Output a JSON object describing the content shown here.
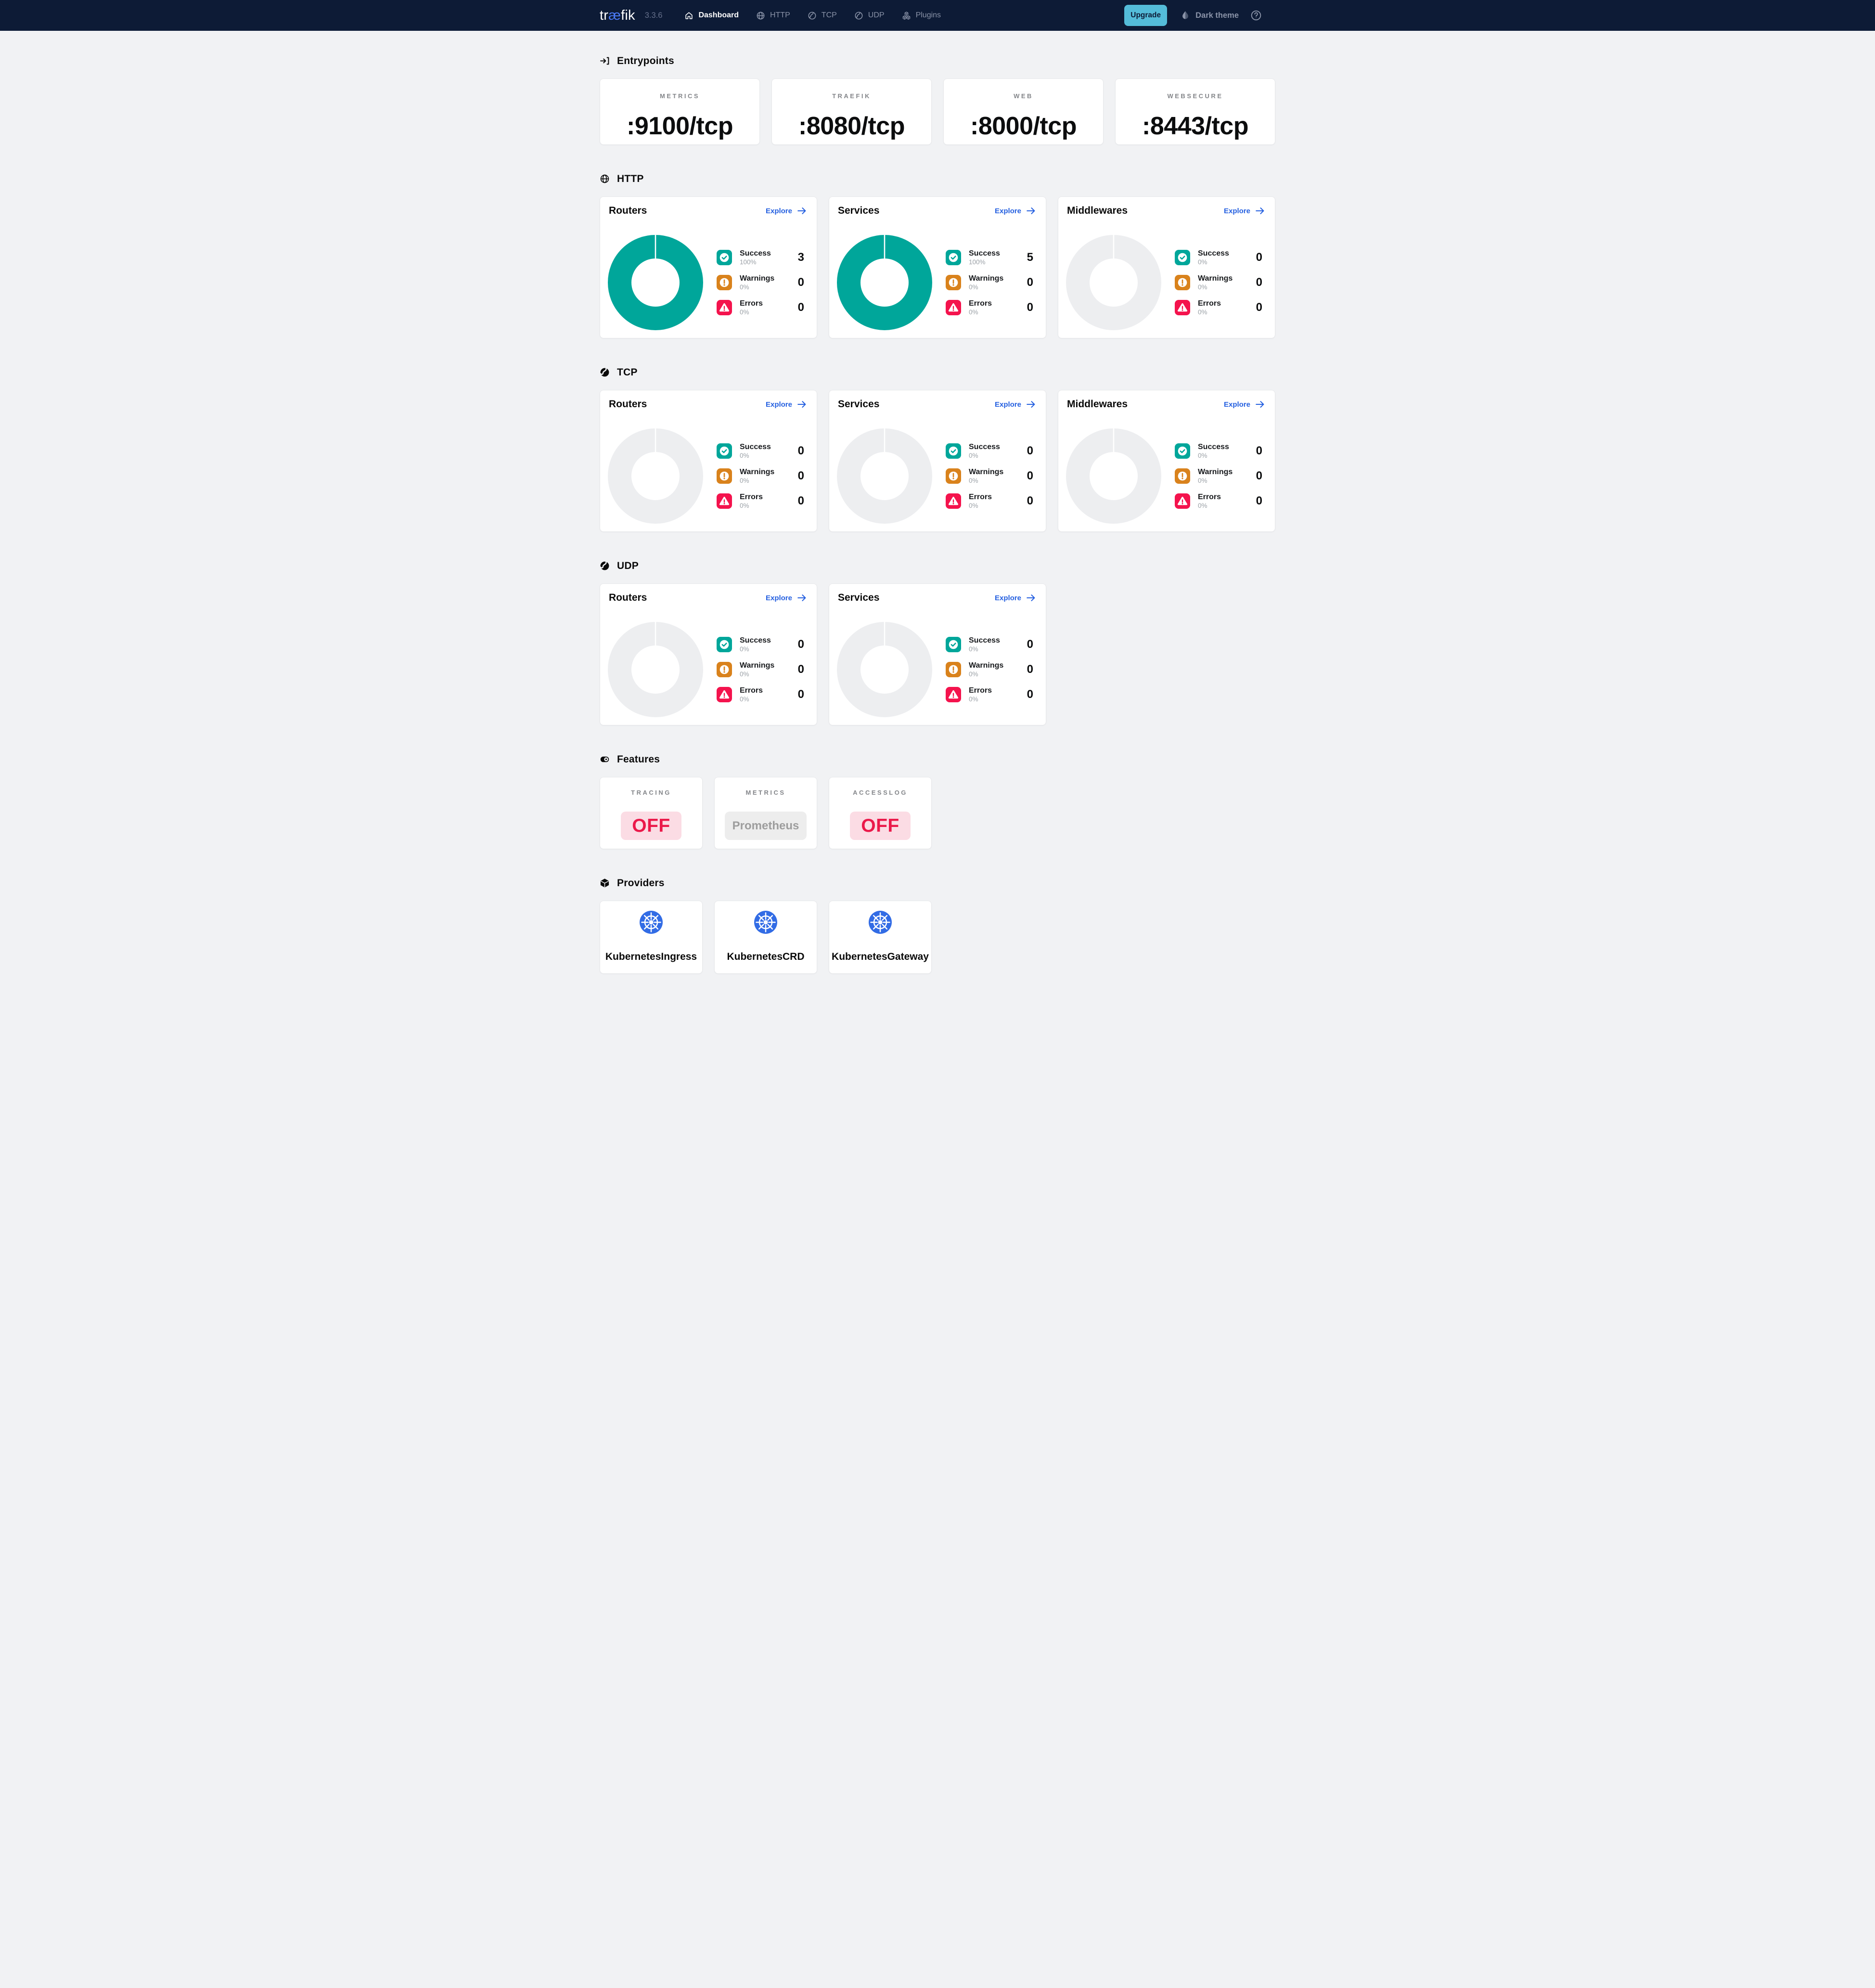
{
  "app": {
    "title_prefix": "tr",
    "title_ligature": "æ",
    "title_suffix": "fik",
    "version": "3.3.6"
  },
  "header": {
    "nav": [
      {
        "label": "Dashboard",
        "icon": "home-icon",
        "active": true
      },
      {
        "label": "HTTP",
        "icon": "globe-icon",
        "active": false
      },
      {
        "label": "TCP",
        "icon": "proxy-icon",
        "active": false
      },
      {
        "label": "UDP",
        "icon": "proxy-icon",
        "active": false
      },
      {
        "label": "Plugins",
        "icon": "plugins-icon",
        "active": false
      }
    ],
    "upgrade_label": "Upgrade",
    "theme_toggle_label": "Dark theme"
  },
  "colors": {
    "success": "#00a69a",
    "warning": "#d9821c",
    "error": "#f4134d",
    "donut_empty": "#edeef0",
    "link_blue": "#2560e0",
    "logo_blue": "#4b7bf8",
    "header_bg": "#0d1b36",
    "upgrade_bg": "#54bcd9",
    "kubernetes_blue": "#326ce5",
    "off_pill_bg": "#fbdce4",
    "off_pill_text": "#eb194a",
    "neutral_pill_bg": "#eeeeee",
    "neutral_pill_text": "#9c9c9c"
  },
  "sections": [
    {
      "id": "entrypoints",
      "title": "Entrypoints",
      "icon": "login-icon",
      "type": "stats",
      "cards": [
        {
          "label": "METRICS",
          "value": ":9100/tcp"
        },
        {
          "label": "TRAEFIK",
          "value": ":8080/tcp"
        },
        {
          "label": "WEB",
          "value": ":8000/tcp"
        },
        {
          "label": "WEBSECURE",
          "value": ":8443/tcp"
        }
      ]
    },
    {
      "id": "http",
      "title": "HTTP",
      "icon": "globe-icon",
      "type": "charts",
      "cards": [
        {
          "title": "Routers",
          "explore_label": "Explore",
          "chart": 0
        },
        {
          "title": "Services",
          "explore_label": "Explore",
          "chart": 1
        },
        {
          "title": "Middlewares",
          "explore_label": "Explore",
          "chart": 2
        }
      ]
    },
    {
      "id": "tcp",
      "title": "TCP",
      "icon": "proxy-icon-filled",
      "type": "charts",
      "cards": [
        {
          "title": "Routers",
          "explore_label": "Explore",
          "chart": 3
        },
        {
          "title": "Services",
          "explore_label": "Explore",
          "chart": 4
        },
        {
          "title": "Middlewares",
          "explore_label": "Explore",
          "chart": 5
        }
      ]
    },
    {
      "id": "udp",
      "title": "UDP",
      "icon": "proxy-icon-filled",
      "type": "charts",
      "cards": [
        {
          "title": "Routers",
          "explore_label": "Explore",
          "chart": 6
        },
        {
          "title": "Services",
          "explore_label": "Explore",
          "chart": 7
        }
      ]
    },
    {
      "id": "features",
      "title": "Features",
      "icon": "toggle-icon",
      "type": "features",
      "cards": [
        {
          "label": "TRACING",
          "pill": "OFF",
          "state": "off"
        },
        {
          "label": "METRICS",
          "pill": "Prometheus",
          "state": "neutral"
        },
        {
          "label": "ACCESSLOG",
          "pill": "OFF",
          "state": "off"
        }
      ]
    },
    {
      "id": "providers",
      "title": "Providers",
      "icon": "cube-icon",
      "type": "providers",
      "cards": [
        {
          "name": "KubernetesIngress",
          "icon": "kubernetes-icon"
        },
        {
          "name": "KubernetesCRD",
          "icon": "kubernetes-icon"
        },
        {
          "name": "KubernetesGateway",
          "icon": "kubernetes-icon"
        }
      ]
    }
  ],
  "chart_data": [
    {
      "type": "donut",
      "section": "HTTP",
      "card": "Routers",
      "series": [
        {
          "name": "Success",
          "percent": 100,
          "value": 3
        },
        {
          "name": "Warnings",
          "percent": 0,
          "value": 0
        },
        {
          "name": "Errors",
          "percent": 0,
          "value": 0
        }
      ]
    },
    {
      "type": "donut",
      "section": "HTTP",
      "card": "Services",
      "series": [
        {
          "name": "Success",
          "percent": 100,
          "value": 5
        },
        {
          "name": "Warnings",
          "percent": 0,
          "value": 0
        },
        {
          "name": "Errors",
          "percent": 0,
          "value": 0
        }
      ]
    },
    {
      "type": "donut",
      "section": "HTTP",
      "card": "Middlewares",
      "series": [
        {
          "name": "Success",
          "percent": 0,
          "value": 0
        },
        {
          "name": "Warnings",
          "percent": 0,
          "value": 0
        },
        {
          "name": "Errors",
          "percent": 0,
          "value": 0
        }
      ]
    },
    {
      "type": "donut",
      "section": "TCP",
      "card": "Routers",
      "series": [
        {
          "name": "Success",
          "percent": 0,
          "value": 0
        },
        {
          "name": "Warnings",
          "percent": 0,
          "value": 0
        },
        {
          "name": "Errors",
          "percent": 0,
          "value": 0
        }
      ]
    },
    {
      "type": "donut",
      "section": "TCP",
      "card": "Services",
      "series": [
        {
          "name": "Success",
          "percent": 0,
          "value": 0
        },
        {
          "name": "Warnings",
          "percent": 0,
          "value": 0
        },
        {
          "name": "Errors",
          "percent": 0,
          "value": 0
        }
      ]
    },
    {
      "type": "donut",
      "section": "TCP",
      "card": "Middlewares",
      "series": [
        {
          "name": "Success",
          "percent": 0,
          "value": 0
        },
        {
          "name": "Warnings",
          "percent": 0,
          "value": 0
        },
        {
          "name": "Errors",
          "percent": 0,
          "value": 0
        }
      ]
    },
    {
      "type": "donut",
      "section": "UDP",
      "card": "Routers",
      "series": [
        {
          "name": "Success",
          "percent": 0,
          "value": 0
        },
        {
          "name": "Warnings",
          "percent": 0,
          "value": 0
        },
        {
          "name": "Errors",
          "percent": 0,
          "value": 0
        }
      ]
    },
    {
      "type": "donut",
      "section": "UDP",
      "card": "Services",
      "series": [
        {
          "name": "Success",
          "percent": 0,
          "value": 0
        },
        {
          "name": "Warnings",
          "percent": 0,
          "value": 0
        },
        {
          "name": "Errors",
          "percent": 0,
          "value": 0
        }
      ]
    }
  ]
}
